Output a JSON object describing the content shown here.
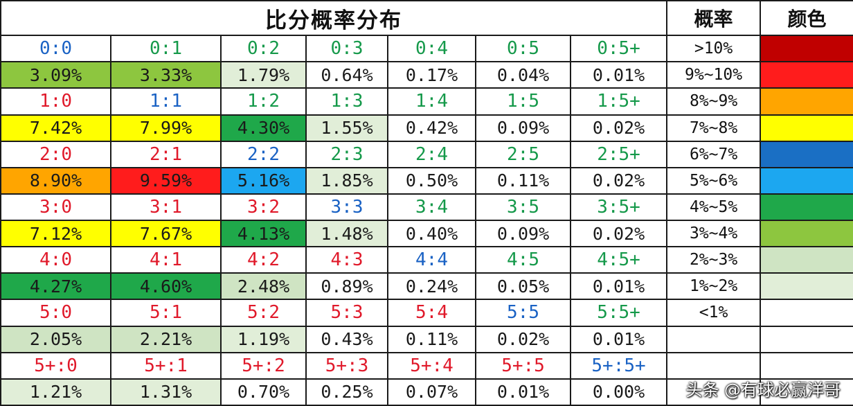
{
  "table": {
    "title": "比分概率分布",
    "prob_header": "概率",
    "color_header": "颜色",
    "rows": [
      {
        "scores": [
          "0:0",
          "0:1",
          "0:2",
          "0:3",
          "0:4",
          "0:5",
          "0:5+"
        ],
        "score_colors": [
          "blue",
          "green",
          "green",
          "green",
          "green",
          "green",
          "green"
        ],
        "probs": [
          "3.09%",
          "3.33%",
          "1.79%",
          "0.64%",
          "0.17%",
          "0.04%",
          "0.01%"
        ],
        "prob_bg": [
          "#8dc63f",
          "#8dc63f",
          "#e1eed8",
          "#ffffff",
          "#ffffff",
          "#ffffff",
          "#ffffff"
        ]
      },
      {
        "scores": [
          "1:0",
          "1:1",
          "1:2",
          "1:3",
          "1:4",
          "1:5",
          "1:5+"
        ],
        "score_colors": [
          "red",
          "blue",
          "green",
          "green",
          "green",
          "green",
          "green"
        ],
        "probs": [
          "7.42%",
          "7.99%",
          "4.30%",
          "1.55%",
          "0.42%",
          "0.09%",
          "0.02%"
        ],
        "prob_bg": [
          "#ffff00",
          "#ffff00",
          "#1fa84a",
          "#e1eed8",
          "#ffffff",
          "#ffffff",
          "#ffffff"
        ]
      },
      {
        "scores": [
          "2:0",
          "2:1",
          "2:2",
          "2:3",
          "2:4",
          "2:5",
          "2:5+"
        ],
        "score_colors": [
          "red",
          "red",
          "blue",
          "green",
          "green",
          "green",
          "green"
        ],
        "probs": [
          "8.90%",
          "9.59%",
          "5.16%",
          "1.85%",
          "0.50%",
          "0.11%",
          "0.02%"
        ],
        "prob_bg": [
          "#ffa500",
          "#ff1c1c",
          "#1ca7f0",
          "#e1eed8",
          "#ffffff",
          "#ffffff",
          "#ffffff"
        ]
      },
      {
        "scores": [
          "3:0",
          "3:1",
          "3:2",
          "3:3",
          "3:4",
          "3:5",
          "3:5+"
        ],
        "score_colors": [
          "red",
          "red",
          "red",
          "blue",
          "green",
          "green",
          "green"
        ],
        "probs": [
          "7.12%",
          "7.67%",
          "4.13%",
          "1.48%",
          "0.40%",
          "0.09%",
          "0.02%"
        ],
        "prob_bg": [
          "#ffff00",
          "#ffff00",
          "#1fa84a",
          "#e1eed8",
          "#ffffff",
          "#ffffff",
          "#ffffff"
        ]
      },
      {
        "scores": [
          "4:0",
          "4:1",
          "4:2",
          "4:3",
          "4:4",
          "4:5",
          "4:5+"
        ],
        "score_colors": [
          "red",
          "red",
          "red",
          "red",
          "blue",
          "green",
          "green"
        ],
        "probs": [
          "4.27%",
          "4.60%",
          "2.48%",
          "0.89%",
          "0.24%",
          "0.05%",
          "0.01%"
        ],
        "prob_bg": [
          "#1fa84a",
          "#1fa84a",
          "#cfe4c3",
          "#ffffff",
          "#ffffff",
          "#ffffff",
          "#ffffff"
        ]
      },
      {
        "scores": [
          "5:0",
          "5:1",
          "5:2",
          "5:3",
          "5:4",
          "5:5",
          "5:5+"
        ],
        "score_colors": [
          "red",
          "red",
          "red",
          "red",
          "red",
          "blue",
          "green"
        ],
        "probs": [
          "2.05%",
          "2.21%",
          "1.19%",
          "0.43%",
          "0.11%",
          "0.02%",
          "0.01%"
        ],
        "prob_bg": [
          "#cfe4c3",
          "#cfe4c3",
          "#e1eed8",
          "#ffffff",
          "#ffffff",
          "#ffffff",
          "#ffffff"
        ]
      },
      {
        "scores": [
          "5+:0",
          "5+:1",
          "5+:2",
          "5+:3",
          "5+:4",
          "5+:5",
          "5+:5+"
        ],
        "score_colors": [
          "red",
          "red",
          "red",
          "red",
          "red",
          "red",
          "blue"
        ],
        "probs": [
          "1.21%",
          "1.31%",
          "0.70%",
          "0.25%",
          "0.07%",
          "0.01%",
          "0.00%"
        ],
        "prob_bg": [
          "#e1eed8",
          "#e1eed8",
          "#ffffff",
          "#ffffff",
          "#ffffff",
          "#ffffff",
          "#ffffff"
        ]
      }
    ]
  },
  "legend": [
    {
      "range": ">10%",
      "color": "#c00000"
    },
    {
      "range": "9%~10%",
      "color": "#ff1c1c"
    },
    {
      "range": "8%~9%",
      "color": "#ffa500"
    },
    {
      "range": "7%~8%",
      "color": "#ffff00"
    },
    {
      "range": "6%~7%",
      "color": "#1a6fc4"
    },
    {
      "range": "5%~6%",
      "color": "#1ca7f0"
    },
    {
      "range": "4%~5%",
      "color": "#1fa84a"
    },
    {
      "range": "3%~4%",
      "color": "#8dc63f"
    },
    {
      "range": "2%~3%",
      "color": "#cfe4c3"
    },
    {
      "range": "1%~2%",
      "color": "#e1eed8"
    },
    {
      "range": "<1%",
      "color": ""
    },
    {
      "range": "",
      "color": ""
    },
    {
      "range": "",
      "color": ""
    },
    {
      "range": "",
      "color": ""
    }
  ],
  "watermark": "头条 @有球必赢洋哥"
}
